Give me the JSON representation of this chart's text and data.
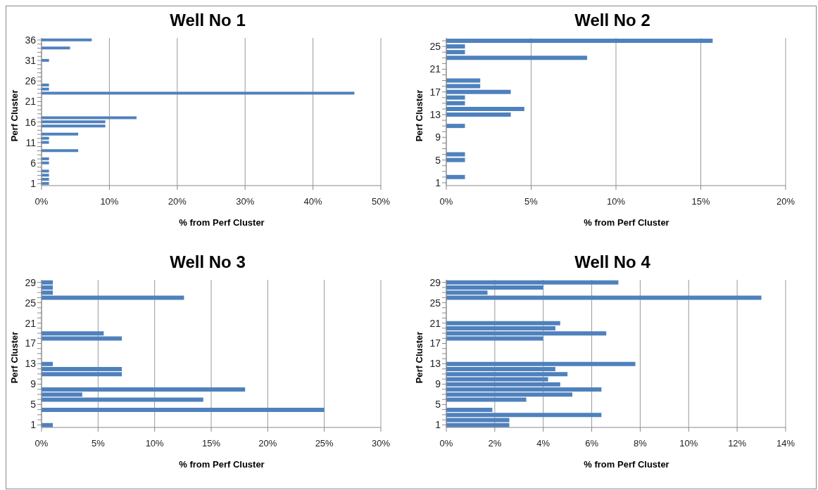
{
  "chart_data": [
    {
      "type": "bar",
      "orientation": "horizontal",
      "title": "Well No 1",
      "xlabel": "% from Perf Cluster",
      "ylabel": "Perf Cluster",
      "color": "#4f81bd",
      "grid": "x",
      "categories": [
        "36",
        null,
        null,
        null,
        null,
        "31",
        null,
        null,
        null,
        null,
        "26",
        null,
        null,
        null,
        null,
        "21",
        null,
        null,
        null,
        null,
        "16",
        null,
        null,
        null,
        null,
        "11",
        null,
        null,
        null,
        null,
        "6",
        null,
        null,
        null,
        null,
        "1"
      ],
      "values": [
        7.4,
        null,
        4.2,
        null,
        null,
        1.1,
        null,
        null,
        null,
        null,
        null,
        1.1,
        1.1,
        46.1,
        null,
        null,
        null,
        null,
        null,
        14.0,
        9.4,
        9.4,
        null,
        5.4,
        1.1,
        1.1,
        null,
        5.4,
        null,
        1.1,
        1.1,
        null,
        1.1,
        1.1,
        1.1,
        1.1
      ],
      "xlim": [
        0,
        50
      ],
      "xticks": [
        {
          "value": 0,
          "label": "0%"
        },
        {
          "value": 10,
          "label": "10%"
        },
        {
          "value": 20,
          "label": "20%"
        },
        {
          "value": 30,
          "label": "30%"
        },
        {
          "value": 40,
          "label": "40%"
        },
        {
          "value": 50,
          "label": "50%"
        }
      ]
    },
    {
      "type": "bar",
      "orientation": "horizontal",
      "title": "Well No 2",
      "xlabel": "% from Perf Cluster",
      "ylabel": "Perf Cluster",
      "color": "#4f81bd",
      "grid": "x",
      "categories": [
        null,
        "25",
        null,
        null,
        null,
        "21",
        null,
        null,
        null,
        "17",
        null,
        null,
        null,
        "13",
        null,
        null,
        null,
        "9",
        null,
        null,
        null,
        "5",
        null,
        null,
        null,
        "1"
      ],
      "values": [
        15.7,
        1.1,
        1.1,
        8.3,
        null,
        null,
        null,
        2.0,
        2.0,
        3.8,
        1.1,
        1.1,
        4.6,
        3.8,
        null,
        1.1,
        null,
        null,
        null,
        null,
        1.1,
        1.1,
        null,
        null,
        1.1,
        null
      ],
      "xlim": [
        0,
        20
      ],
      "xticks": [
        {
          "value": 0,
          "label": "0%"
        },
        {
          "value": 5,
          "label": "5%"
        },
        {
          "value": 10,
          "label": "10%"
        },
        {
          "value": 15,
          "label": "15%"
        },
        {
          "value": 20,
          "label": "20%"
        }
      ]
    },
    {
      "type": "bar",
      "orientation": "horizontal",
      "title": "Well No 3",
      "xlabel": "% from Perf Cluster",
      "ylabel": "Perf Cluster",
      "color": "#4f81bd",
      "grid": "x",
      "categories": [
        "29",
        null,
        null,
        null,
        "25",
        null,
        null,
        null,
        "21",
        null,
        null,
        null,
        "17",
        null,
        null,
        null,
        "13",
        null,
        null,
        null,
        "9",
        null,
        null,
        null,
        "5",
        null,
        null,
        null,
        "1"
      ],
      "values": [
        1.0,
        1.0,
        1.0,
        12.6,
        null,
        null,
        null,
        null,
        null,
        null,
        5.5,
        7.1,
        null,
        null,
        null,
        null,
        1.0,
        7.1,
        7.1,
        null,
        null,
        18.0,
        3.6,
        14.3,
        null,
        25.0,
        null,
        null,
        1.0
      ],
      "xlim": [
        0,
        30
      ],
      "xticks": [
        {
          "value": 0,
          "label": "0%"
        },
        {
          "value": 5,
          "label": "5%"
        },
        {
          "value": 10,
          "label": "10%"
        },
        {
          "value": 15,
          "label": "15%"
        },
        {
          "value": 20,
          "label": "20%"
        },
        {
          "value": 25,
          "label": "25%"
        },
        {
          "value": 30,
          "label": "30%"
        }
      ]
    },
    {
      "type": "bar",
      "orientation": "horizontal",
      "title": "Well No 4",
      "xlabel": "% from Perf Cluster",
      "ylabel": "Perf Cluster",
      "color": "#4f81bd",
      "grid": "x",
      "categories": [
        "29",
        null,
        null,
        null,
        "25",
        null,
        null,
        null,
        "21",
        null,
        null,
        null,
        "17",
        null,
        null,
        null,
        "13",
        null,
        null,
        null,
        "9",
        null,
        null,
        null,
        "5",
        null,
        null,
        null,
        "1"
      ],
      "values": [
        7.1,
        4.0,
        1.7,
        13.0,
        null,
        null,
        null,
        null,
        4.7,
        4.5,
        6.6,
        4.0,
        null,
        null,
        null,
        null,
        7.8,
        4.5,
        5.0,
        4.2,
        4.7,
        6.4,
        5.2,
        3.3,
        null,
        1.9,
        6.4,
        2.6,
        2.6
      ],
      "xlim": [
        0,
        14
      ],
      "xticks": [
        {
          "value": 0,
          "label": "0%"
        },
        {
          "value": 2,
          "label": "2%"
        },
        {
          "value": 4,
          "label": "4%"
        },
        {
          "value": 6,
          "label": "6%"
        },
        {
          "value": 8,
          "label": "8%"
        },
        {
          "value": 10,
          "label": "10%"
        },
        {
          "value": 12,
          "label": "12%"
        },
        {
          "value": 14,
          "label": "14%"
        }
      ]
    }
  ]
}
